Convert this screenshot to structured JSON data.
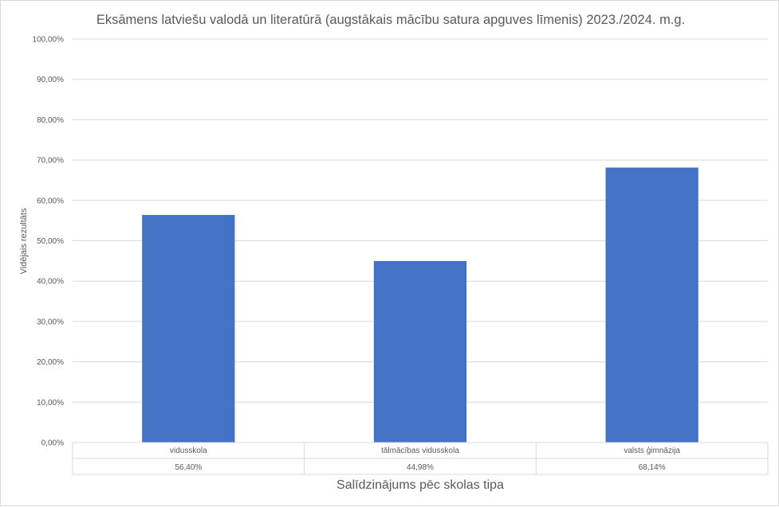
{
  "chart_data": {
    "type": "bar",
    "title": "Eksāmens latviešu valodā un literatūrā (augstākais mācību satura apguves līmenis) 2023./2024. m.g.",
    "xlabel": "Salīdzinājums pēc skolas tipa",
    "ylabel": "Vidējais rezultāts",
    "categories": [
      "vidusskola",
      "tālmācības vidusskola",
      "valsts ģimnāzija"
    ],
    "values": [
      56.4,
      44.98,
      68.14
    ],
    "value_labels": [
      "56,40%",
      "44,98%",
      "68,14%"
    ],
    "ylim": [
      0,
      100
    ],
    "yticks": [
      0,
      10,
      20,
      30,
      40,
      50,
      60,
      70,
      80,
      90,
      100
    ],
    "ytick_labels": [
      "0,00%",
      "10,00%",
      "20,00%",
      "30,00%",
      "40,00%",
      "50,00%",
      "60,00%",
      "70,00%",
      "80,00%",
      "90,00%",
      "100,00%"
    ],
    "grid": true,
    "legend": "none",
    "data_table": true,
    "bar_color": "#4472c4",
    "grid_color": "#d9d9d9"
  }
}
